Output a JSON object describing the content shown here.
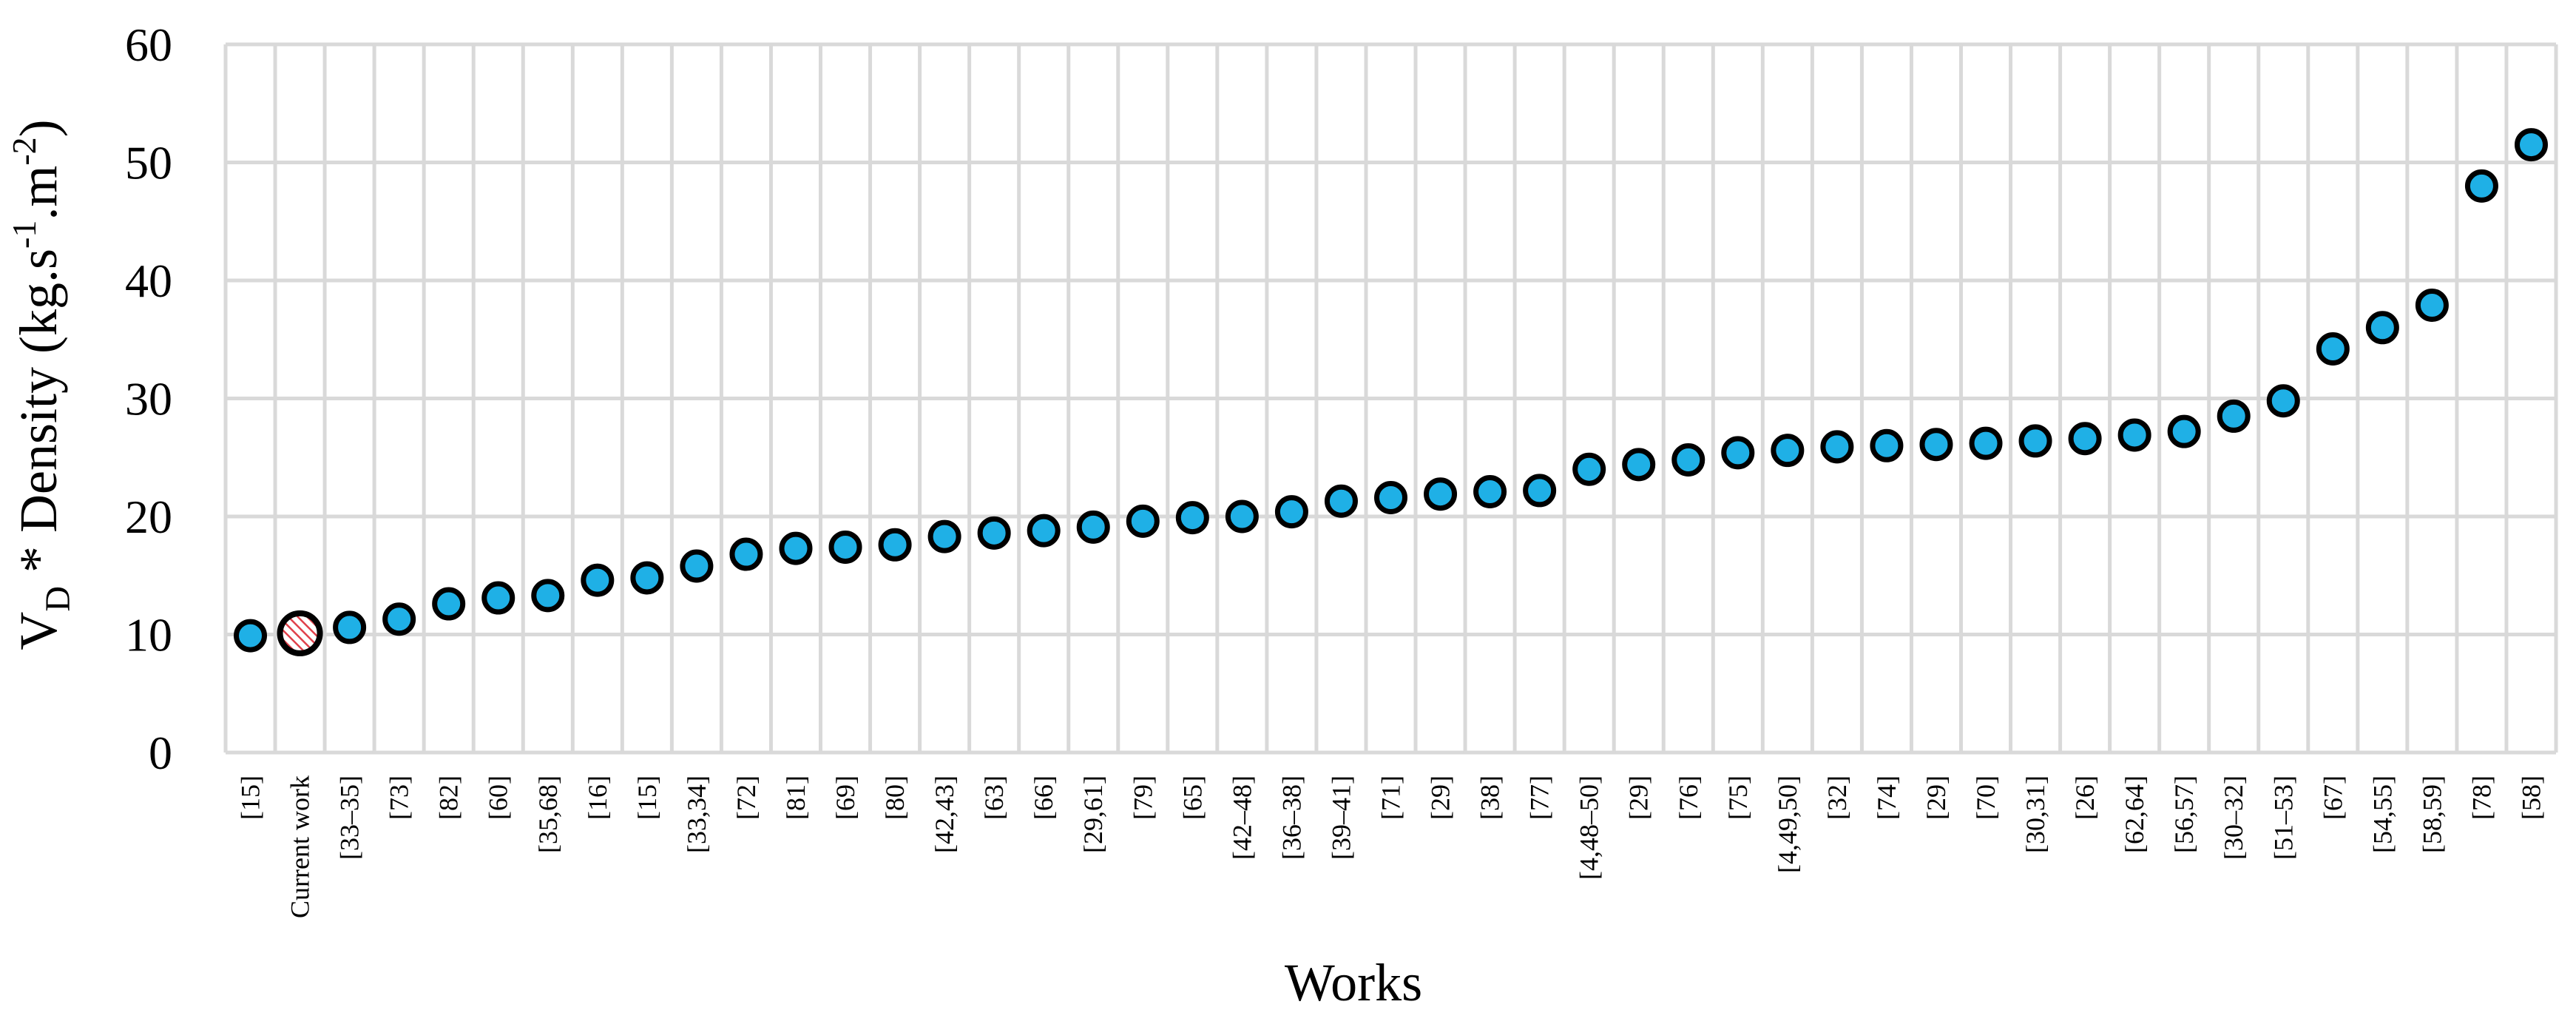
{
  "chart_data": {
    "type": "scatter",
    "xlabel": "Works",
    "ylabel": {
      "main": "V",
      "sub": "D",
      "rest": " * Density (kg.s",
      "sup1": "-1",
      "mid": ".m",
      "sup2": "-2",
      "end": ")"
    },
    "ylim": [
      0,
      60
    ],
    "yticks": [
      0,
      10,
      20,
      30,
      40,
      50,
      60
    ],
    "grid": true,
    "legend": "none",
    "categories": [
      "[15]",
      "Current work",
      "[33–35]",
      "[73]",
      "[82]",
      "[60]",
      "[35,68]",
      "[16]",
      "[15]",
      "[33,34]",
      "[72]",
      "[81]",
      "[69]",
      "[80]",
      "[42,43]",
      "[63]",
      "[66]",
      "[29,61]",
      "[79]",
      "[65]",
      "[42–48]",
      "[36–38]",
      "[39–41]",
      "[71]",
      "[29]",
      "[38]",
      "[77]",
      "[4,48–50]",
      "[29]",
      "[76]",
      "[75]",
      "[4,49,50]",
      "[32]",
      "[74]",
      "[29]",
      "[70]",
      "[30,31]",
      "[26]",
      "[62,64]",
      "[56,57]",
      "[30–32]",
      "[51–53]",
      "[67]",
      "[54,55]",
      "[58,59]",
      "[78]",
      "[58]"
    ],
    "values": [
      9.9,
      10.1,
      10.6,
      11.3,
      12.6,
      13.1,
      13.3,
      14.6,
      14.8,
      15.8,
      16.8,
      17.3,
      17.4,
      17.6,
      18.3,
      18.6,
      18.8,
      19.1,
      19.6,
      19.9,
      20.0,
      20.4,
      21.3,
      21.6,
      21.9,
      22.1,
      22.2,
      24.0,
      24.4,
      24.8,
      25.4,
      25.6,
      25.9,
      26.0,
      26.1,
      26.2,
      26.4,
      26.6,
      26.9,
      27.2,
      28.5,
      29.8,
      34.2,
      36.0,
      37.9,
      48.0,
      51.5
    ],
    "highlight_index": 1,
    "colors": {
      "marker_fill": "#1fb0e6",
      "marker_edge": "#000000",
      "highlight_fill": "#ffffff",
      "highlight_hatch": "#e0404a",
      "grid": "#d9d9d9"
    }
  }
}
